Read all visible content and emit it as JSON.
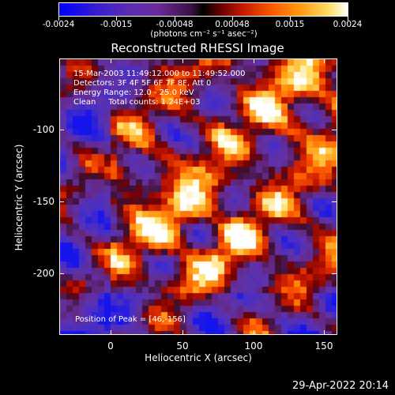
{
  "colorbar": {
    "tick_labels": [
      "-0.0024",
      "-0.0015",
      "-0.00048",
      "0.00048",
      "0.0015",
      "0.0024"
    ],
    "unit_label": "(photons cm⁻² s⁻¹ asec⁻²)"
  },
  "plot": {
    "title": "Reconstructed RHESSI Image",
    "info_lines": [
      "15-Mar-2003 11:49:12.000 to 11:49:52.000",
      "Detectors: 3F 4F 5F 6F 7F 8F, Att 0",
      "Energy Range: 12.0 - 25.0 keV",
      "Clean     Total counts: 1.24E+03"
    ],
    "peak_label": "Position of Peak = [46,-156]",
    "x_axis_label": "Heliocentric X (arcsec)",
    "y_axis_label": "Heliocentric Y (arcsec)",
    "x_tick_labels": [
      "0",
      "50",
      "100",
      "150"
    ],
    "y_tick_labels": [
      "-100",
      "-150",
      "-200"
    ]
  },
  "footer": {
    "timestamp": "29-Apr-2022 20:14"
  },
  "chart_data": {
    "type": "heatmap",
    "title": "Reconstructed RHESSI Image",
    "xlabel": "Heliocentric X (arcsec)",
    "ylabel": "Heliocentric Y (arcsec)",
    "xlim": [
      -37,
      157
    ],
    "ylim": [
      -244,
      -53
    ],
    "color_range": [
      -0.0024,
      0.0024
    ],
    "peak": [
      46,
      -156
    ],
    "colors": {
      "low": "#0000ff",
      "mid": "#000000",
      "high": "#ffffff"
    }
  }
}
